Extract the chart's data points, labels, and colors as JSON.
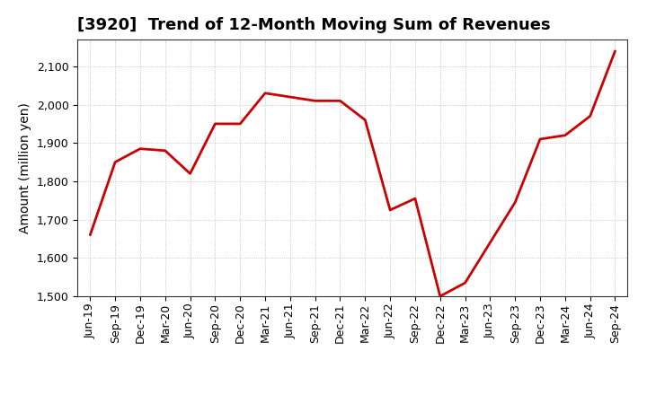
{
  "title": "[3920]  Trend of 12-Month Moving Sum of Revenues",
  "ylabel": "Amount (million yen)",
  "line_color": "#cc0000",
  "line_width": 2.0,
  "background_color": "#ffffff",
  "grid_color": "#999999",
  "x_labels": [
    "Jun-19",
    "Sep-19",
    "Dec-19",
    "Mar-20",
    "Jun-20",
    "Sep-20",
    "Dec-20",
    "Mar-21",
    "Jun-21",
    "Sep-21",
    "Dec-21",
    "Mar-22",
    "Jun-22",
    "Sep-22",
    "Dec-22",
    "Mar-23",
    "Jun-23",
    "Sep-23",
    "Dec-23",
    "Mar-24",
    "Jun-24",
    "Sep-24"
  ],
  "values": [
    1660,
    1850,
    1885,
    1880,
    1820,
    1950,
    1950,
    2030,
    2020,
    2010,
    2010,
    1960,
    1725,
    1755,
    1500,
    1535,
    1640,
    1745,
    1910,
    1920,
    1970,
    2140
  ],
  "ylim": [
    1500,
    2170
  ],
  "yticks": [
    1500,
    1600,
    1700,
    1800,
    1900,
    2000,
    2100
  ],
  "title_fontsize": 13,
  "ylabel_fontsize": 10,
  "tick_fontsize": 9
}
